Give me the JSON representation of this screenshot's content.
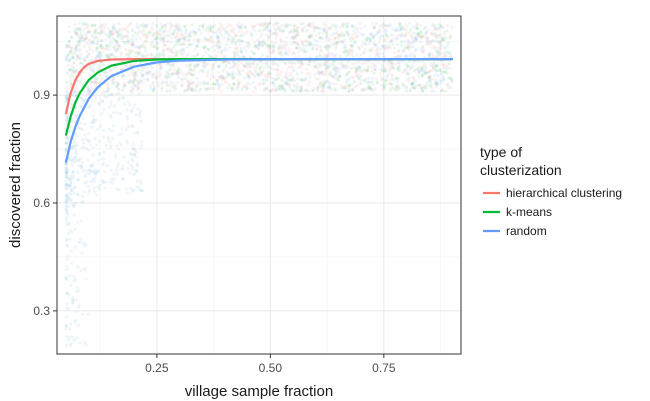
{
  "chart_data": {
    "type": "line",
    "xlabel": "village sample fraction",
    "ylabel": "discovered fraction",
    "xlim": [
      0.03,
      0.92
    ],
    "ylim": [
      0.18,
      1.12
    ],
    "x_ticks": [
      0.25,
      0.5,
      0.75
    ],
    "x_tick_labels": [
      "0.25",
      "0.50",
      "0.75"
    ],
    "y_ticks": [
      0.3,
      0.6,
      0.9
    ],
    "y_tick_labels": [
      "0.3",
      "0.6",
      "0.9"
    ],
    "grid": true,
    "legend": {
      "title_lines": [
        "type of",
        "clusterization"
      ],
      "placement": "right"
    },
    "background_points": "dense semi-transparent scatter of individual simulation results, mostly between 0.91 and 1.10 across x 0.05–0.90, sparse points down to about 0.2 near x 0.05–0.15",
    "series": [
      {
        "name": "hierarchical clustering",
        "color": "#F8766D",
        "x": [
          0.05,
          0.06,
          0.07,
          0.08,
          0.09,
          0.1,
          0.12,
          0.15,
          0.2,
          0.3,
          0.5,
          0.9
        ],
        "y": [
          0.85,
          0.905,
          0.94,
          0.963,
          0.978,
          0.987,
          0.995,
          0.999,
          1.0,
          1.0,
          1.0,
          1.0
        ]
      },
      {
        "name": "k-means",
        "color": "#00BA38",
        "x": [
          0.05,
          0.06,
          0.07,
          0.08,
          0.1,
          0.12,
          0.15,
          0.2,
          0.25,
          0.3,
          0.5,
          0.9
        ],
        "y": [
          0.79,
          0.84,
          0.878,
          0.905,
          0.942,
          0.963,
          0.982,
          0.995,
          0.999,
          1.0,
          1.0,
          1.0
        ]
      },
      {
        "name": "random",
        "color": "#619CFF",
        "x": [
          0.05,
          0.06,
          0.07,
          0.08,
          0.1,
          0.12,
          0.15,
          0.2,
          0.25,
          0.3,
          0.4,
          0.5,
          0.9
        ],
        "y": [
          0.715,
          0.77,
          0.81,
          0.842,
          0.89,
          0.922,
          0.953,
          0.979,
          0.991,
          0.996,
          0.999,
          1.0,
          1.0
        ]
      }
    ]
  }
}
